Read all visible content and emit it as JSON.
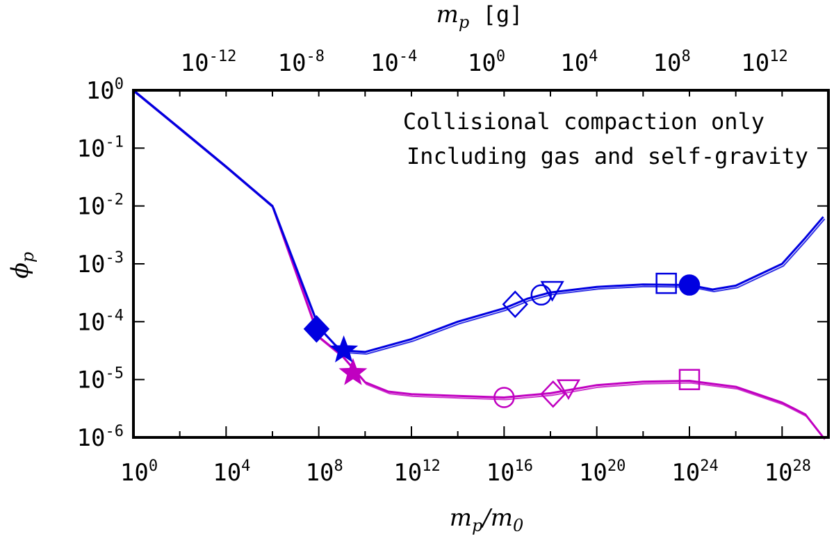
{
  "colors": {
    "magenta": "#c000c0",
    "blue": "#0000e0",
    "axis": "#000000"
  },
  "chart_data": {
    "type": "line",
    "xscale": "log",
    "yscale": "log",
    "xlabel": "m_p/m_0",
    "x2label": "m_p [g]",
    "ylabel": "phi_p",
    "xlim": [
      1,
      1e+30
    ],
    "x2lim": [
      1e-15,
      1000000000000000.0
    ],
    "ylim": [
      1e-06,
      1
    ],
    "legend_position": "top-right",
    "x_tick_labels": [
      {
        "base": "10",
        "exp": "0",
        "value": 1.0
      },
      {
        "base": "10",
        "exp": "4",
        "value": 10000.0
      },
      {
        "base": "10",
        "exp": "8",
        "value": 100000000.0
      },
      {
        "base": "10",
        "exp": "12",
        "value": 1000000000000.0
      },
      {
        "base": "10",
        "exp": "16",
        "value": 1e+16
      },
      {
        "base": "10",
        "exp": "20",
        "value": 1e+20
      },
      {
        "base": "10",
        "exp": "24",
        "value": 1e+24
      },
      {
        "base": "10",
        "exp": "28",
        "value": 1e+28
      }
    ],
    "x2_tick_labels": [
      {
        "base": "10",
        "exp": "-12",
        "value": 1e-12
      },
      {
        "base": "10",
        "exp": "-8",
        "value": 1e-08
      },
      {
        "base": "10",
        "exp": "-4",
        "value": 0.0001
      },
      {
        "base": "10",
        "exp": "0",
        "value": 1.0
      },
      {
        "base": "10",
        "exp": "4",
        "value": 10000.0
      },
      {
        "base": "10",
        "exp": "8",
        "value": 100000000.0
      },
      {
        "base": "10",
        "exp": "12",
        "value": 1000000000000.0
      }
    ],
    "y_tick_labels": [
      {
        "base": "10",
        "exp": "0",
        "value": 1.0
      },
      {
        "base": "10",
        "exp": "-1",
        "value": 0.1
      },
      {
        "base": "10",
        "exp": "-2",
        "value": 0.01
      },
      {
        "base": "10",
        "exp": "-3",
        "value": 0.001
      },
      {
        "base": "10",
        "exp": "-4",
        "value": 0.0001
      },
      {
        "base": "10",
        "exp": "-5",
        "value": 1e-05
      },
      {
        "base": "10",
        "exp": "-6",
        "value": 1e-06
      }
    ],
    "series": [
      {
        "name": "Collisional compaction only",
        "color": "#c000c0",
        "points": [
          [
            1.0,
            1.0
          ],
          [
            100.0,
            0.22
          ],
          [
            10000.0,
            0.048
          ],
          [
            1000000.0,
            0.01
          ],
          [
            100000000.0,
            5.5e-05
          ],
          [
            1000000000.0,
            2.6e-05
          ],
          [
            10000000000.0,
            9e-06
          ],
          [
            100000000000.0,
            6.2e-06
          ],
          [
            1000000000000.0,
            5.6e-06
          ],
          [
            100000000000000.0,
            5.2e-06
          ],
          [
            1e+16,
            4.9e-06
          ],
          [
            1e+18,
            5.8e-06
          ],
          [
            1e+20,
            8e-06
          ],
          [
            1e+22,
            9.2e-06
          ],
          [
            1e+24,
            9.5e-06
          ],
          [
            1e+26,
            7.5e-06
          ],
          [
            1e+28,
            4e-06
          ],
          [
            1e+29,
            2.5e-06
          ],
          [
            6e+29,
            1e-06
          ]
        ],
        "markers": [
          {
            "shape": "star",
            "filled": true,
            "x": 3000000000.0,
            "y": 1.3e-05
          },
          {
            "shape": "circle",
            "filled": false,
            "x": 1e+16,
            "y": 4.9e-06
          },
          {
            "shape": "diamond",
            "filled": false,
            "x": 1.3e+18,
            "y": 5.6e-06
          },
          {
            "shape": "triangle-down",
            "filled": false,
            "x": 6e+18,
            "y": 7e-06
          },
          {
            "shape": "square",
            "filled": false,
            "x": 1e+24,
            "y": 1e-05
          }
        ]
      },
      {
        "name": "Including gas and self-gravity",
        "color": "#0000e0",
        "points": [
          [
            1.0,
            1.0
          ],
          [
            100.0,
            0.22
          ],
          [
            10000.0,
            0.048
          ],
          [
            1000000.0,
            0.01
          ],
          [
            100000000.0,
            8e-05
          ],
          [
            500000000.0,
            4e-05
          ],
          [
            1000000000.0,
            3.2e-05
          ],
          [
            10000000000.0,
            3e-05
          ],
          [
            1000000000000.0,
            5e-05
          ],
          [
            100000000000000.0,
            0.0001
          ],
          [
            1e+16,
            0.00017
          ],
          [
            1e+17,
            0.00025
          ],
          [
            1e+18,
            0.00032
          ],
          [
            1e+20,
            0.0004
          ],
          [
            1e+22,
            0.00044
          ],
          [
            1e+24,
            0.00043
          ],
          [
            1e+25,
            0.00036
          ],
          [
            1e+26,
            0.00042
          ],
          [
            1e+28,
            0.001
          ],
          [
            1e+29,
            0.0028
          ],
          [
            6e+29,
            0.0065
          ]
        ],
        "markers": [
          {
            "shape": "diamond",
            "filled": true,
            "x": 80000000.0,
            "y": 7.5e-05
          },
          {
            "shape": "star",
            "filled": true,
            "x": 1200000000.0,
            "y": 3.2e-05
          },
          {
            "shape": "diamond",
            "filled": false,
            "x": 3e+16,
            "y": 0.0002
          },
          {
            "shape": "circle",
            "filled": false,
            "x": 4e+17,
            "y": 0.00029
          },
          {
            "shape": "triangle-down",
            "filled": false,
            "x": 1.2e+18,
            "y": 0.00035
          },
          {
            "shape": "square",
            "filled": false,
            "x": 1e+23,
            "y": 0.00046
          },
          {
            "shape": "circle",
            "filled": true,
            "x": 1e+24,
            "y": 0.00043
          }
        ]
      }
    ]
  }
}
